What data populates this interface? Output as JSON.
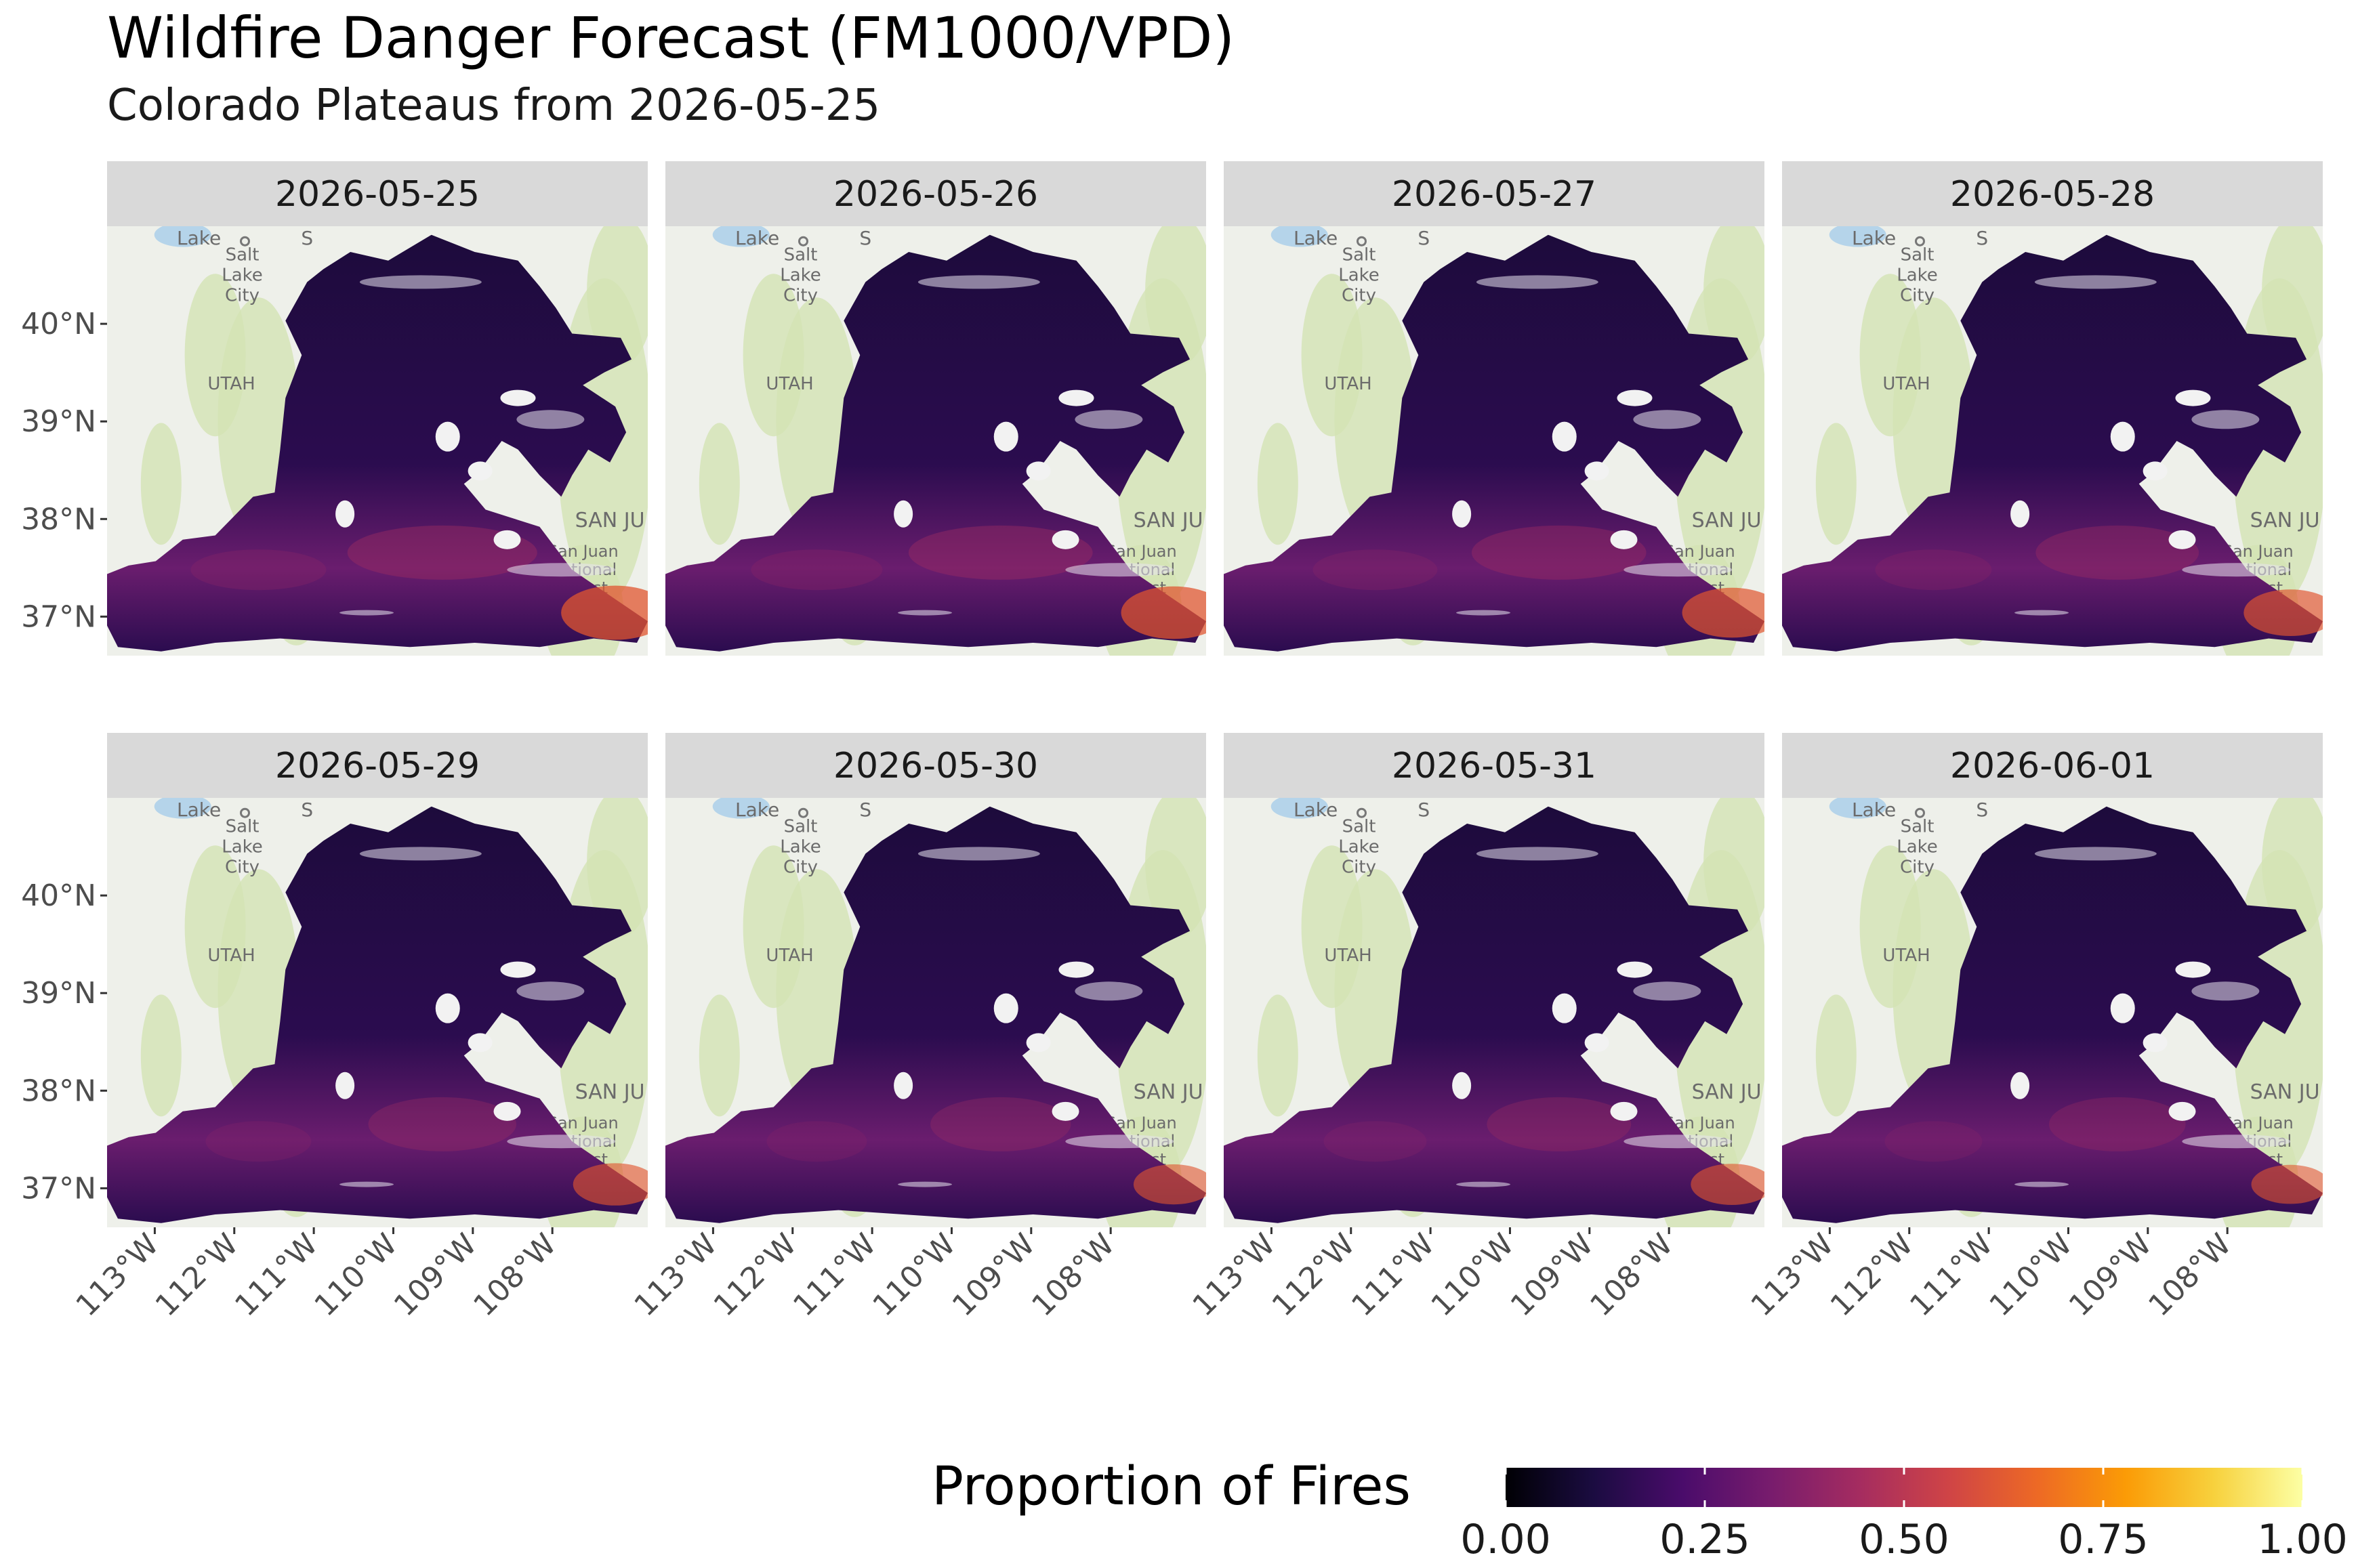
{
  "title": "Wildfire Danger Forecast (FM1000/VPD)",
  "subtitle": "Colorado Plateaus from 2026-05-25",
  "panels": [
    {
      "date": "2026-05-25",
      "intensity": 1.0
    },
    {
      "date": "2026-05-26",
      "intensity": 0.97
    },
    {
      "date": "2026-05-27",
      "intensity": 0.92
    },
    {
      "date": "2026-05-28",
      "intensity": 0.86
    },
    {
      "date": "2026-05-29",
      "intensity": 0.78
    },
    {
      "date": "2026-05-30",
      "intensity": 0.74
    },
    {
      "date": "2026-05-31",
      "intensity": 0.76
    },
    {
      "date": "2026-06-01",
      "intensity": 0.72
    }
  ],
  "axes": {
    "lat_labels": [
      "40°N",
      "39°N",
      "38°N",
      "37°N"
    ],
    "lat_values": [
      40,
      39,
      38,
      37
    ],
    "lon_labels": [
      "113°W",
      "112°W",
      "111°W",
      "110°W",
      "109°W",
      "108°W"
    ],
    "lon_values": [
      -113,
      -112,
      -111,
      -110,
      -109,
      -108
    ],
    "lon_range": [
      -113.6,
      -106.8
    ],
    "lat_range": [
      36.6,
      41.0
    ]
  },
  "basemap_labels": {
    "lake": "Lake",
    "city_line1": "Salt",
    "city_line2": "Lake",
    "city_line3": "City",
    "state": "UTAH",
    "s_mark": "S",
    "san_juan": "SAN JU",
    "forest_line1": "San Juan",
    "forest_line2": "National",
    "forest_line3": "Forest"
  },
  "legend": {
    "title": "Proportion of Fires",
    "ticks": [
      "0.00",
      "0.25",
      "0.50",
      "0.75",
      "1.00"
    ],
    "tick_values": [
      0,
      0.25,
      0.5,
      0.75,
      1.0
    ],
    "colormap": "inferno",
    "colors": [
      "#000004",
      "#1b0c41",
      "#4a0c6b",
      "#781c6d",
      "#a52c60",
      "#cf4446",
      "#ed6925",
      "#fb9b06",
      "#f7d13d",
      "#fcffa4"
    ]
  },
  "palette": {
    "basemap_bg": "#eef0ea",
    "basemap_green": "#d3e4b4",
    "strip_bg": "#d9d9d9",
    "region_dark": "#2b0c4f",
    "region_north": "#1d0b3c",
    "region_south": "#6a1d6e",
    "region_hot": "#e0552f"
  }
}
